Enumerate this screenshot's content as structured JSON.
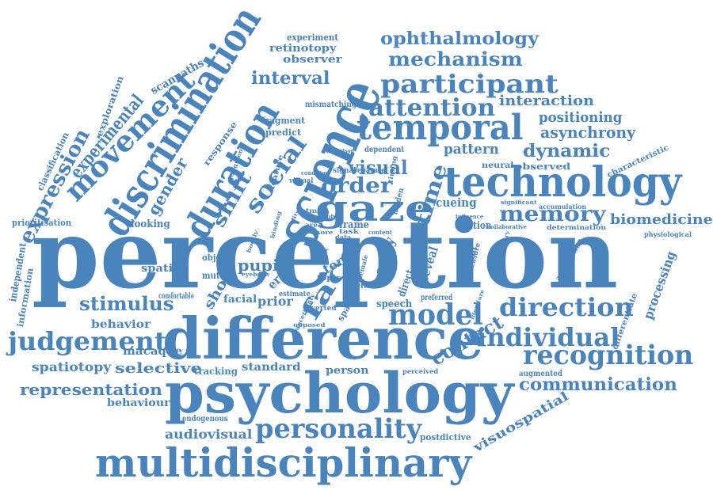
{
  "colors": {
    "word": "#4a84bd",
    "background": "#ffffff"
  },
  "words": [
    "perception",
    "difference",
    "psychology",
    "multidisciplinary",
    "science",
    "technology",
    "temporal",
    "discrimination",
    "duration",
    "gaze",
    "personality",
    "model",
    "direction",
    "recognition",
    "individual",
    "participant",
    "attention",
    "judgement",
    "movement",
    "face",
    "mechanism",
    "ophthalmology",
    "memory",
    "stimulus",
    "social",
    "communication",
    "representation",
    "expression",
    "biomedicine",
    "dynamic",
    "interval",
    "contact",
    "order",
    "visual",
    "time",
    "experimental",
    "shift",
    "gender",
    "selective",
    "asynchrony",
    "interaction",
    "positioning",
    "processing",
    "audiovisual",
    "pattern",
    "spatiotopy",
    "macaque",
    "behavior",
    "behaviour",
    "standard",
    "person",
    "visuospatial",
    "postdictive",
    "retinotopy",
    "observer",
    "experiment",
    "scanpaths",
    "exploration",
    "classification",
    "prioritisation",
    "looking",
    "spatial",
    "object",
    "mutual",
    "pupil",
    "short",
    "prior",
    "facial",
    "error",
    "term",
    "entry",
    "direct",
    "reveal",
    "autism",
    "dilation",
    "cueing",
    "frame",
    "speech",
    "preferred",
    "tracking",
    "endogenous",
    "independent",
    "information",
    "comfortable",
    "characteristic",
    "observed",
    "neural",
    "physiological",
    "determination",
    "accumulation",
    "augmented",
    "differentiate",
    "assumption",
    "response",
    "fragment",
    "predict",
    "mismatching",
    "dependent",
    "comparison",
    "separate",
    "signal",
    "task",
    "virtual",
    "vstm",
    "user",
    "space",
    "averted",
    "estimate",
    "topic",
    "hidden",
    "timing",
    "measure",
    "content",
    "perceived",
    "influence",
    "collaborative",
    "modulatory",
    "significant",
    "literature",
    "judgment",
    "feature",
    "binding",
    "eyebrow",
    "condition",
    "probe",
    "more",
    "trait",
    "female",
    "uncertainty",
    "opposed",
    "affect",
    "reality",
    "area",
    "data",
    "bodily"
  ]
}
